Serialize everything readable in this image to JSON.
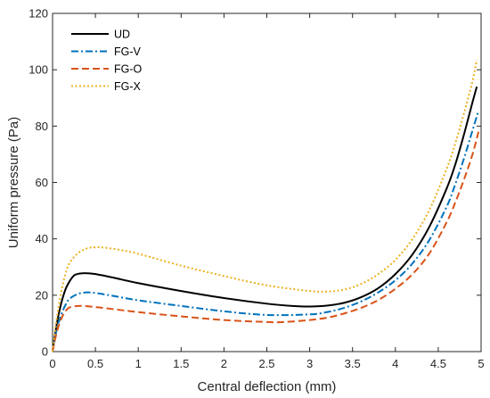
{
  "chart_data": {
    "type": "line",
    "title": "",
    "xlabel": "Central deflection (mm)",
    "ylabel": "Uniform pressure (Pa)",
    "xlim": [
      0,
      5
    ],
    "ylim": [
      0,
      120
    ],
    "x_ticks": [
      0,
      0.5,
      1,
      1.5,
      2,
      2.5,
      3,
      3.5,
      4,
      4.5,
      5
    ],
    "x_tick_labels": [
      "0",
      "0.5",
      "1",
      "1.5",
      "2",
      "2.5",
      "3",
      "3.5",
      "4",
      "4.5",
      "5"
    ],
    "y_ticks": [
      0,
      20,
      40,
      60,
      80,
      100,
      120
    ],
    "y_tick_labels": [
      "0",
      "20",
      "40",
      "60",
      "80",
      "100",
      "120"
    ],
    "grid": false,
    "legend_position": "top-left",
    "series": [
      {
        "name": "UD",
        "color": "#000000",
        "dash": "solid",
        "x": [
          0,
          0.05,
          0.1,
          0.15,
          0.2,
          0.25,
          0.3,
          0.35,
          0.4,
          0.5,
          0.7,
          1.0,
          1.5,
          2.0,
          2.5,
          2.8,
          3.0,
          3.2,
          3.4,
          3.6,
          3.8,
          4.0,
          4.2,
          4.4,
          4.6,
          4.7,
          4.8,
          4.9,
          4.95
        ],
        "y": [
          0,
          10,
          17,
          22,
          25,
          27,
          27.6,
          27.8,
          27.8,
          27.5,
          26.3,
          24.3,
          21.5,
          19.0,
          17.0,
          16.2,
          16.0,
          16.3,
          17.3,
          19.3,
          22.5,
          27.5,
          34.5,
          44.5,
          58.0,
          66.5,
          77.0,
          88.5,
          94.0
        ]
      },
      {
        "name": "FG-V",
        "color": "#0072bd",
        "dash": "dashdot",
        "x": [
          0,
          0.05,
          0.1,
          0.15,
          0.2,
          0.3,
          0.4,
          0.5,
          0.7,
          1.0,
          1.5,
          2.0,
          2.5,
          3.0,
          3.2,
          3.4,
          3.6,
          3.8,
          4.0,
          4.2,
          4.4,
          4.6,
          4.7,
          4.8,
          4.9,
          4.97
        ],
        "y": [
          0,
          8,
          13,
          16.5,
          18.8,
          20.5,
          21,
          20.8,
          19.8,
          18.2,
          16.2,
          14.3,
          13.0,
          13.2,
          14.0,
          15.5,
          17.8,
          21.0,
          25.3,
          31.3,
          39.8,
          51.5,
          59.5,
          68.5,
          78.5,
          85.5
        ]
      },
      {
        "name": "FG-O",
        "color": "#d95319",
        "dash": "dashed",
        "x": [
          0,
          0.05,
          0.1,
          0.15,
          0.2,
          0.3,
          0.4,
          0.5,
          0.7,
          1.0,
          1.5,
          2.0,
          2.5,
          2.7,
          3.0,
          3.2,
          3.4,
          3.6,
          3.8,
          4.0,
          4.2,
          4.4,
          4.6,
          4.7,
          4.8,
          4.9,
          4.97
        ],
        "y": [
          0,
          7,
          11.5,
          14.3,
          15.7,
          16.2,
          16.1,
          15.8,
          15.1,
          14.0,
          12.5,
          11.2,
          10.5,
          10.5,
          11.2,
          12.0,
          13.5,
          15.5,
          18.3,
          22.3,
          27.5,
          35.0,
          46.0,
          53.0,
          61.0,
          70.0,
          78.0
        ]
      },
      {
        "name": "FG-X",
        "color": "#edb120",
        "dash": "dotted",
        "x": [
          0,
          0.05,
          0.1,
          0.15,
          0.2,
          0.3,
          0.4,
          0.5,
          0.6,
          0.8,
          1.0,
          1.5,
          2.0,
          2.5,
          3.0,
          3.2,
          3.4,
          3.6,
          3.8,
          4.0,
          4.2,
          4.4,
          4.6,
          4.7,
          4.8,
          4.9,
          4.95
        ],
        "y": [
          0,
          12,
          21,
          27.5,
          31.5,
          35,
          36.6,
          37,
          36.9,
          36,
          34.7,
          30.5,
          26.8,
          23.5,
          21.5,
          21.3,
          22.0,
          24.0,
          27.5,
          32.5,
          40.0,
          50.5,
          65.0,
          74.0,
          84.5,
          96.0,
          103.5
        ]
      }
    ]
  }
}
